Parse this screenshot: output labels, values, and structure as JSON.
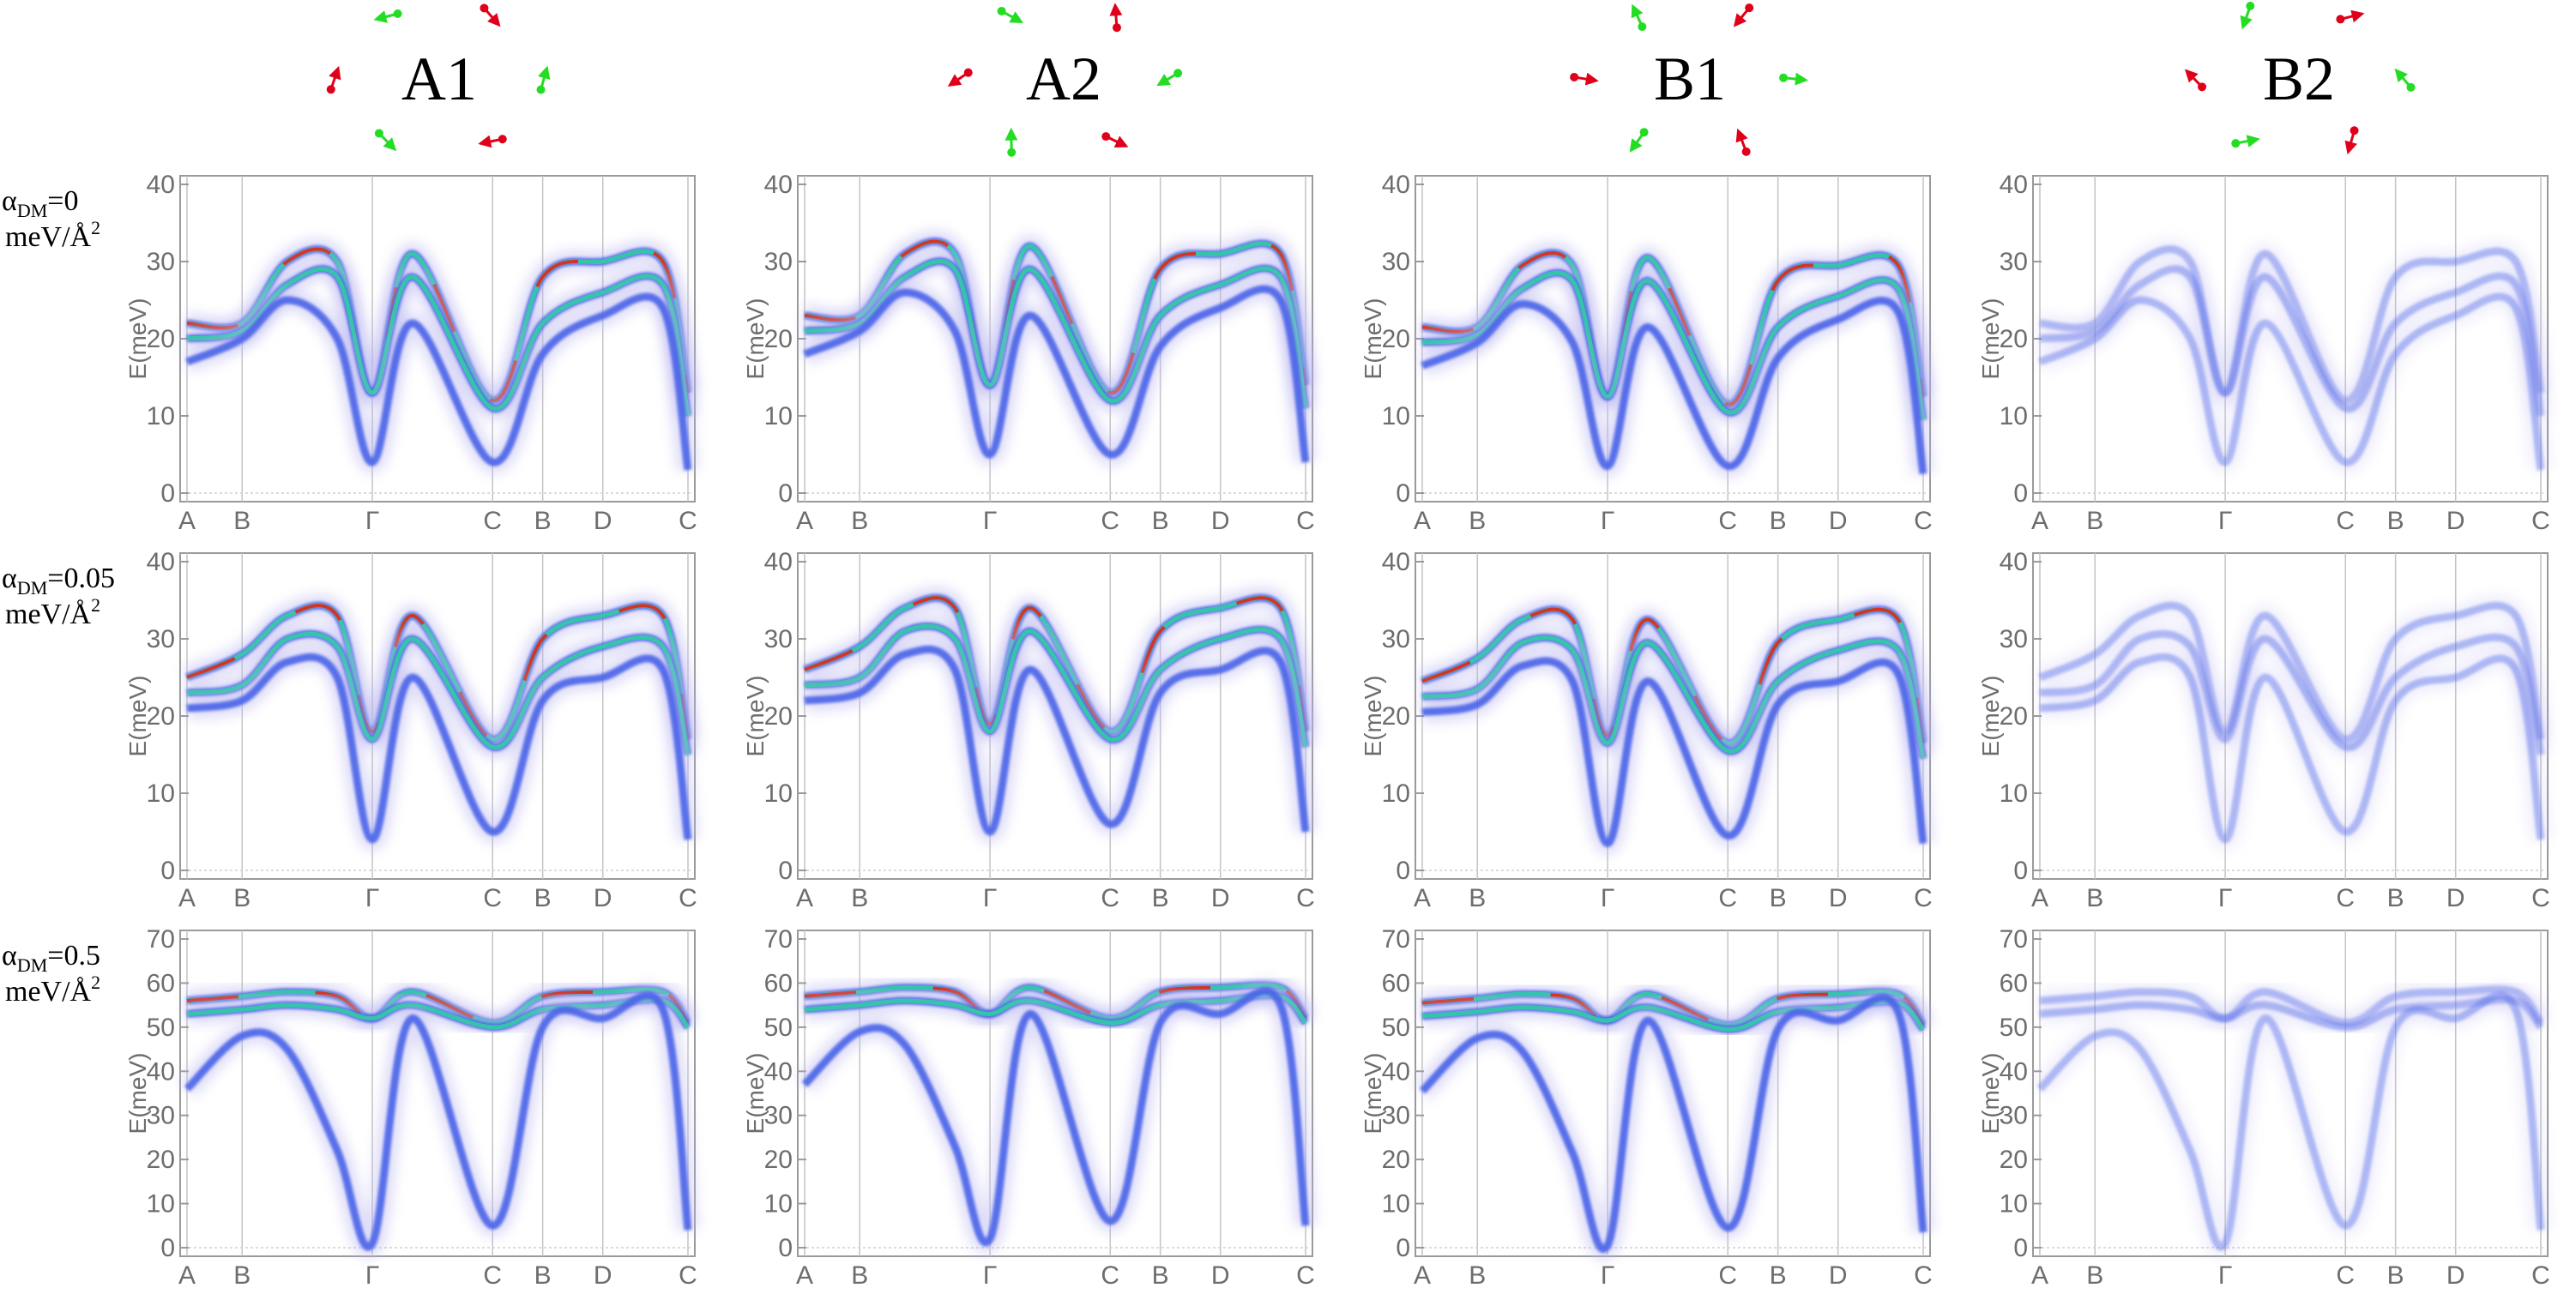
{
  "chart_data": {
    "type": "heatmap",
    "columns": [
      {
        "title": "A1",
        "arrow_pattern": [
          "red",
          "green",
          "red",
          "green",
          "red",
          "green"
        ]
      },
      {
        "title": "A2",
        "arrow_pattern": [
          "red",
          "green",
          "red",
          "green",
          "red",
          "green"
        ]
      },
      {
        "title": "B1",
        "arrow_pattern": [
          "red",
          "green",
          "red",
          "green",
          "red",
          "green"
        ]
      },
      {
        "title": "B2",
        "arrow_pattern": [
          "red",
          "green",
          "red",
          "green",
          "red",
          "green"
        ]
      }
    ],
    "rows": [
      {
        "label_main": "α",
        "label_sub": "DM",
        "label_value": "=0",
        "label_units": "meV/Å",
        "label_sup": "2",
        "ylim": [
          0,
          40
        ],
        "yticks": [
          0,
          10,
          20,
          30,
          40
        ]
      },
      {
        "label_main": "α",
        "label_sub": "DM",
        "label_value": "=0.05",
        "label_units": "meV/Å",
        "label_sup": "2",
        "ylim": [
          0,
          40
        ],
        "yticks": [
          0,
          10,
          20,
          30,
          40
        ]
      },
      {
        "label_main": "α",
        "label_sub": "DM",
        "label_value": "=0.5",
        "label_units": "meV/Å",
        "label_sup": "2",
        "ylim": [
          0,
          70
        ],
        "yticks": [
          0,
          10,
          20,
          30,
          40,
          50,
          60,
          70
        ]
      }
    ],
    "ylabel": "E(meV)",
    "x_path_labels": [
      "A",
      "B",
      "Γ",
      "C",
      "B",
      "D",
      "C"
    ],
    "x_path_positions": [
      0.0,
      0.11,
      0.37,
      0.61,
      0.71,
      0.83,
      1.0
    ],
    "colors": {
      "arrow_red": "#e0001a",
      "arrow_green": "#22dd22",
      "low": "#4a63e8",
      "mid": "#2fd3a0",
      "high": "#ee1a10",
      "frame": "#9a9a9a",
      "tick_text": "#6d6d6d"
    },
    "series": [
      {
        "name": "",
        "row": 0,
        "points": [
          [
            0.0,
            22
          ],
          [
            0.11,
            22
          ],
          [
            0.2,
            30
          ],
          [
            0.3,
            30
          ],
          [
            0.37,
            13
          ],
          [
            0.45,
            31
          ],
          [
            0.61,
            12
          ],
          [
            0.71,
            28
          ],
          [
            0.83,
            30
          ],
          [
            0.95,
            30
          ],
          [
            1.0,
            13
          ]
        ]
      },
      {
        "name": "",
        "row": 0,
        "points": [
          [
            0.0,
            20
          ],
          [
            0.11,
            21
          ],
          [
            0.2,
            27
          ],
          [
            0.3,
            28
          ],
          [
            0.37,
            13
          ],
          [
            0.45,
            28
          ],
          [
            0.61,
            11
          ],
          [
            0.71,
            22
          ],
          [
            0.83,
            26
          ],
          [
            0.95,
            27
          ],
          [
            1.0,
            10
          ]
        ]
      },
      {
        "name": "",
        "row": 0,
        "points": [
          [
            0.0,
            17
          ],
          [
            0.11,
            20
          ],
          [
            0.2,
            25
          ],
          [
            0.3,
            20
          ],
          [
            0.37,
            4
          ],
          [
            0.45,
            22
          ],
          [
            0.61,
            4
          ],
          [
            0.71,
            18
          ],
          [
            0.83,
            23
          ],
          [
            0.95,
            24
          ],
          [
            1.0,
            3
          ]
        ]
      },
      {
        "name": "",
        "row": 1,
        "points": [
          [
            0.0,
            25
          ],
          [
            0.11,
            28
          ],
          [
            0.2,
            33
          ],
          [
            0.3,
            33
          ],
          [
            0.37,
            18
          ],
          [
            0.45,
            33
          ],
          [
            0.61,
            17
          ],
          [
            0.71,
            30
          ],
          [
            0.83,
            33
          ],
          [
            0.95,
            33
          ],
          [
            1.0,
            17
          ]
        ]
      },
      {
        "name": "",
        "row": 1,
        "points": [
          [
            0.0,
            23
          ],
          [
            0.11,
            24
          ],
          [
            0.2,
            30
          ],
          [
            0.3,
            29
          ],
          [
            0.37,
            17
          ],
          [
            0.45,
            30
          ],
          [
            0.61,
            16
          ],
          [
            0.71,
            25
          ],
          [
            0.83,
            29
          ],
          [
            0.95,
            29
          ],
          [
            1.0,
            15
          ]
        ]
      },
      {
        "name": "",
        "row": 1,
        "points": [
          [
            0.0,
            21
          ],
          [
            0.11,
            22
          ],
          [
            0.2,
            27
          ],
          [
            0.3,
            25
          ],
          [
            0.37,
            4
          ],
          [
            0.45,
            25
          ],
          [
            0.61,
            5
          ],
          [
            0.71,
            22
          ],
          [
            0.83,
            25
          ],
          [
            0.95,
            26
          ],
          [
            1.0,
            4
          ]
        ]
      },
      {
        "name": "",
        "row": 2,
        "points": [
          [
            0.0,
            56
          ],
          [
            0.11,
            57
          ],
          [
            0.2,
            58
          ],
          [
            0.3,
            57
          ],
          [
            0.37,
            52
          ],
          [
            0.45,
            58
          ],
          [
            0.61,
            51
          ],
          [
            0.71,
            57
          ],
          [
            0.83,
            58
          ],
          [
            0.95,
            58
          ],
          [
            1.0,
            51
          ]
        ]
      },
      {
        "name": "",
        "row": 2,
        "points": [
          [
            0.0,
            53
          ],
          [
            0.11,
            54
          ],
          [
            0.2,
            55
          ],
          [
            0.3,
            54
          ],
          [
            0.37,
            52
          ],
          [
            0.45,
            55
          ],
          [
            0.61,
            50
          ],
          [
            0.71,
            54
          ],
          [
            0.83,
            55
          ],
          [
            0.95,
            56
          ],
          [
            1.0,
            50
          ]
        ]
      },
      {
        "name": "",
        "row": 2,
        "points": [
          [
            0.0,
            36
          ],
          [
            0.11,
            48
          ],
          [
            0.2,
            45
          ],
          [
            0.3,
            22
          ],
          [
            0.37,
            1
          ],
          [
            0.45,
            52
          ],
          [
            0.61,
            5
          ],
          [
            0.71,
            50
          ],
          [
            0.83,
            52
          ],
          [
            0.95,
            54
          ],
          [
            1.0,
            4
          ]
        ]
      }
    ]
  }
}
